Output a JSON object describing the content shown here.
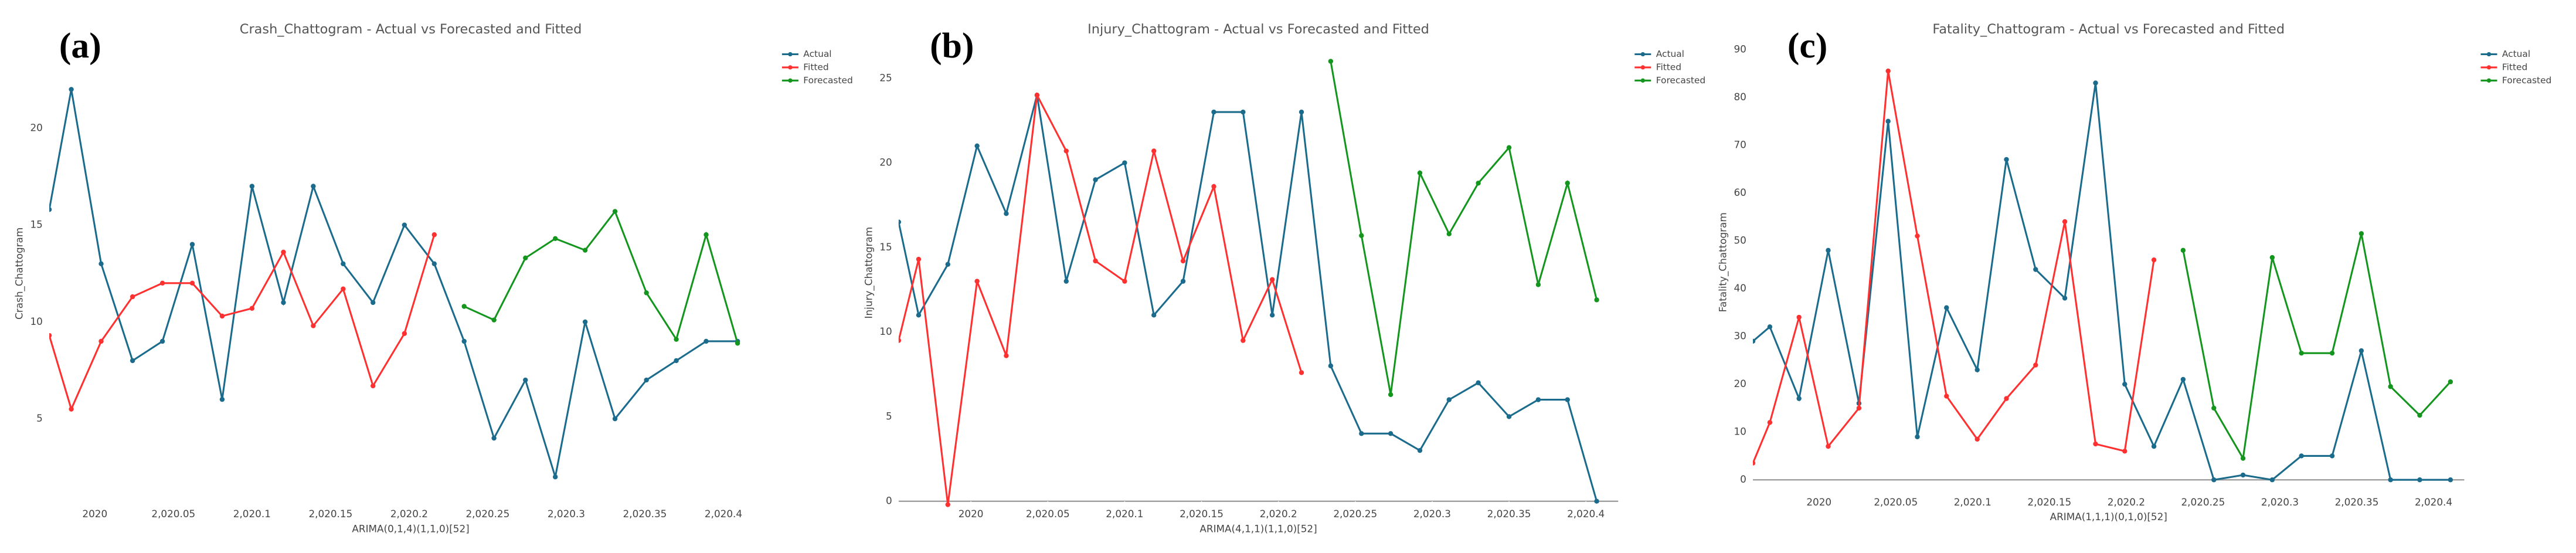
{
  "chart_data": [
    {
      "type": "line",
      "panel_label": "(a)",
      "title": "Crash_Chattogram - Actual vs Forecasted and Fitted",
      "x_label": "ARIMA(0,1,4)(1,1,0)[52]",
      "y_label": "Crash_Chattogram",
      "x": [
        2019.971,
        2019.985,
        2020.004,
        2020.024,
        2020.043,
        2020.062,
        2020.081,
        2020.1,
        2020.12,
        2020.139,
        2020.158,
        2020.177,
        2020.197,
        2020.216,
        2020.235,
        2020.254,
        2020.274,
        2020.293,
        2020.312,
        2020.331,
        2020.351,
        2020.37,
        2020.389,
        2020.409
      ],
      "series": [
        {
          "name": "Actual",
          "color": "#1b6b8c",
          "values": [
            15.8,
            22,
            13,
            8,
            9,
            14,
            6,
            17,
            11,
            17,
            13,
            11,
            15,
            13,
            9,
            4,
            7,
            2,
            10,
            5,
            7,
            8,
            9,
            9
          ]
        },
        {
          "name": "Fitted",
          "color": "#ff3030",
          "values": [
            9.3,
            5.5,
            9,
            11.3,
            12,
            12,
            10.3,
            10.7,
            13.6,
            9.8,
            11.7,
            6.7,
            9.4,
            14.5,
            null,
            null,
            null,
            null,
            null,
            null,
            null,
            null,
            null,
            null
          ]
        },
        {
          "name": "Forecasted",
          "color": "#14961e",
          "values": [
            null,
            null,
            null,
            null,
            null,
            null,
            null,
            null,
            null,
            null,
            null,
            null,
            null,
            null,
            10.8,
            10.1,
            13.3,
            14.3,
            13.7,
            15.7,
            11.5,
            9.1,
            14.5,
            8.9
          ]
        }
      ],
      "xlim": [
        2019.971,
        2020.431
      ],
      "ylim": [
        1,
        24
      ],
      "xticks": [
        2020,
        {
          "value": 2020.05,
          "label": "2,020.05"
        },
        {
          "value": 2020.1,
          "label": "2,020.1"
        },
        {
          "value": 2020.15,
          "label": "2,020.15"
        },
        {
          "value": 2020.2,
          "label": "2,020.2"
        },
        {
          "value": 2020.25,
          "label": "2,020.25"
        },
        {
          "value": 2020.3,
          "label": "2,020.3"
        },
        {
          "value": 2020.35,
          "label": "2,020.35"
        },
        {
          "value": 2020.4,
          "label": "2,020.4"
        }
      ],
      "yticks": [
        5,
        10,
        15,
        20
      ]
    },
    {
      "type": "line",
      "panel_label": "(b)",
      "title": "Injury_Chattogram - Actual vs Forecasted and Fitted",
      "x_label": "ARIMA(4,1,1)(1,1,0)[52]",
      "y_label": "Injury_Chattogram",
      "x": [
        2019.953,
        2019.966,
        2019.985,
        2020.004,
        2020.023,
        2020.043,
        2020.062,
        2020.081,
        2020.1,
        2020.119,
        2020.138,
        2020.158,
        2020.177,
        2020.196,
        2020.215,
        2020.234,
        2020.254,
        2020.273,
        2020.292,
        2020.311,
        2020.33,
        2020.35,
        2020.369,
        2020.388,
        2020.407
      ],
      "series": [
        {
          "name": "Actual",
          "color": "#1b6b8c",
          "values": [
            16.5,
            11,
            14,
            21,
            17,
            24,
            13,
            19,
            20,
            11,
            13,
            23,
            23,
            11,
            23,
            8,
            4,
            4,
            3,
            6,
            7,
            5,
            6,
            6,
            0
          ]
        },
        {
          "name": "Fitted",
          "color": "#ff3030",
          "values": [
            9.5,
            14.3,
            -0.2,
            13,
            8.6,
            24,
            20.7,
            14.2,
            13,
            20.7,
            14.2,
            18.6,
            9.5,
            13.1,
            7.6,
            null,
            null,
            null,
            null,
            null,
            null,
            null,
            null,
            null,
            null
          ]
        },
        {
          "name": "Forecasted",
          "color": "#14961e",
          "values": [
            null,
            null,
            null,
            null,
            null,
            null,
            null,
            null,
            null,
            null,
            null,
            null,
            null,
            null,
            null,
            26,
            15.7,
            6.3,
            19.4,
            15.8,
            18.8,
            20.9,
            12.8,
            18.8,
            11.9
          ]
        }
      ],
      "xlim": [
        2019.953,
        2020.421
      ],
      "ylim": [
        0,
        27
      ],
      "xticks": [
        2020,
        {
          "value": 2020.05,
          "label": "2,020.05"
        },
        {
          "value": 2020.1,
          "label": "2,020.1"
        },
        {
          "value": 2020.15,
          "label": "2,020.15"
        },
        {
          "value": 2020.2,
          "label": "2,020.2"
        },
        {
          "value": 2020.25,
          "label": "2,020.25"
        },
        {
          "value": 2020.3,
          "label": "2,020.3"
        },
        {
          "value": 2020.35,
          "label": "2,020.35"
        },
        {
          "value": 2020.4,
          "label": "2,020.4"
        }
      ],
      "yticks": [
        0,
        5,
        10,
        15,
        20,
        25
      ]
    },
    {
      "type": "line",
      "panel_label": "(c)",
      "title": "Fatality_Chattogram - Actual vs Forecasted and Fitted",
      "x_label": "ARIMA(1,1,1)(0,1,0)[52]",
      "y_label": "Fatality_Chattogram",
      "x": [
        2019.957,
        2019.968,
        2019.987,
        2020.006,
        2020.026,
        2020.045,
        2020.064,
        2020.083,
        2020.103,
        2020.122,
        2020.141,
        2020.16,
        2020.18,
        2020.199,
        2020.218,
        2020.237,
        2020.257,
        2020.276,
        2020.295,
        2020.314,
        2020.334,
        2020.353,
        2020.372,
        2020.391,
        2020.411
      ],
      "series": [
        {
          "name": "Actual",
          "color": "#1b6b8c",
          "values": [
            29,
            32,
            17,
            48,
            16,
            75,
            9,
            36,
            23,
            67,
            44,
            38,
            83,
            20,
            7,
            21,
            0,
            1,
            0,
            5,
            5,
            27,
            0,
            0,
            0
          ]
        },
        {
          "name": "Fitted",
          "color": "#ff3030",
          "values": [
            3.5,
            12,
            34,
            7,
            15,
            85.5,
            51,
            17.5,
            8.5,
            17,
            24,
            54,
            7.5,
            6,
            46,
            null,
            null,
            null,
            null,
            null,
            null,
            null,
            null,
            null,
            null
          ]
        },
        {
          "name": "Forecasted",
          "color": "#14961e",
          "values": [
            null,
            null,
            null,
            null,
            null,
            null,
            null,
            null,
            null,
            null,
            null,
            null,
            null,
            null,
            null,
            48,
            15,
            4.5,
            46.5,
            26.5,
            26.5,
            51.5,
            19.5,
            13.5,
            20.5
          ]
        }
      ],
      "xlim": [
        2019.957,
        2020.42
      ],
      "ylim": [
        -2,
        93
      ],
      "xticks": [
        2020,
        {
          "value": 2020.05,
          "label": "2,020.05"
        },
        {
          "value": 2020.1,
          "label": "2,020.1"
        },
        {
          "value": 2020.15,
          "label": "2,020.15"
        },
        {
          "value": 2020.2,
          "label": "2,020.2"
        },
        {
          "value": 2020.25,
          "label": "2,020.25"
        },
        {
          "value": 2020.3,
          "label": "2,020.3"
        },
        {
          "value": 2020.35,
          "label": "2,020.35"
        },
        {
          "value": 2020.4,
          "label": "2,020.4"
        }
      ],
      "yticks": [
        0,
        10,
        20,
        30,
        40,
        50,
        60,
        70,
        80,
        90
      ]
    }
  ]
}
